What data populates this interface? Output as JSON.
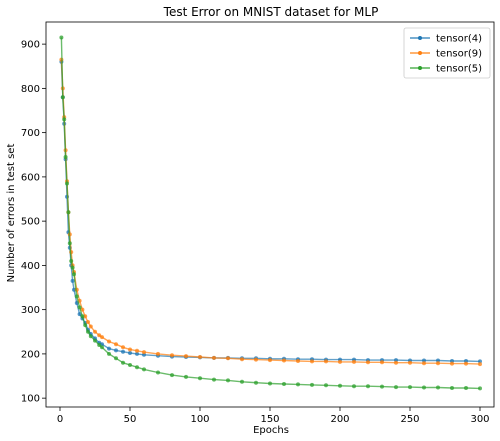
{
  "chart_data": {
    "type": "line",
    "title": "Test Error on MNIST dataset for MLP",
    "xlabel": "Epochs",
    "ylabel": "Number of errors in test set",
    "xlim": [
      -10,
      310
    ],
    "ylim": [
      80,
      950
    ],
    "xticks": [
      0,
      50,
      100,
      150,
      200,
      250,
      300
    ],
    "yticks": [
      100,
      200,
      300,
      400,
      500,
      600,
      700,
      800,
      900
    ],
    "grid": false,
    "legend_position": "top-right",
    "series": [
      {
        "name": "tensor(4)",
        "color": "#1f77b4",
        "x": [
          1,
          2,
          3,
          4,
          5,
          6,
          7,
          8,
          9,
          10,
          12,
          14,
          16,
          18,
          20,
          22,
          25,
          28,
          30,
          35,
          40,
          45,
          50,
          55,
          60,
          70,
          80,
          90,
          100,
          110,
          120,
          130,
          140,
          150,
          160,
          170,
          180,
          190,
          200,
          210,
          220,
          230,
          240,
          250,
          260,
          270,
          280,
          290,
          300
        ],
        "y": [
          860,
          780,
          720,
          640,
          555,
          475,
          440,
          400,
          365,
          345,
          315,
          290,
          280,
          270,
          255,
          245,
          235,
          225,
          222,
          212,
          208,
          205,
          202,
          200,
          198,
          196,
          194,
          193,
          192,
          191,
          191,
          190,
          190,
          189,
          189,
          188,
          188,
          187,
          187,
          187,
          186,
          186,
          186,
          185,
          185,
          185,
          184,
          184,
          183
        ]
      },
      {
        "name": "tensor(9)",
        "color": "#ff7f0e",
        "x": [
          1,
          2,
          3,
          4,
          5,
          6,
          7,
          8,
          9,
          10,
          12,
          14,
          16,
          18,
          20,
          22,
          25,
          28,
          30,
          35,
          40,
          45,
          50,
          55,
          60,
          70,
          80,
          90,
          100,
          110,
          120,
          130,
          140,
          150,
          160,
          170,
          180,
          190,
          200,
          210,
          220,
          230,
          240,
          250,
          260,
          270,
          280,
          290,
          300
        ],
        "y": [
          865,
          800,
          735,
          660,
          590,
          520,
          470,
          430,
          400,
          385,
          345,
          320,
          300,
          285,
          272,
          262,
          250,
          242,
          238,
          228,
          222,
          215,
          210,
          207,
          204,
          200,
          197,
          195,
          193,
          191,
          190,
          188,
          187,
          186,
          185,
          184,
          183,
          183,
          182,
          182,
          181,
          181,
          180,
          180,
          179,
          179,
          178,
          178,
          177
        ]
      },
      {
        "name": "tensor(5)",
        "color": "#2ca02c",
        "x": [
          1,
          2,
          3,
          4,
          5,
          6,
          7,
          8,
          9,
          10,
          12,
          14,
          16,
          18,
          20,
          22,
          25,
          28,
          30,
          35,
          40,
          45,
          50,
          55,
          60,
          70,
          80,
          90,
          100,
          110,
          120,
          130,
          140,
          150,
          160,
          170,
          180,
          190,
          200,
          210,
          220,
          230,
          240,
          250,
          260,
          270,
          280,
          290,
          300
        ],
        "y": [
          915,
          780,
          730,
          645,
          585,
          520,
          450,
          410,
          395,
          380,
          330,
          305,
          285,
          265,
          250,
          240,
          230,
          220,
          215,
          200,
          190,
          180,
          175,
          170,
          165,
          158,
          152,
          148,
          145,
          142,
          140,
          137,
          135,
          133,
          132,
          131,
          130,
          129,
          128,
          127,
          127,
          126,
          125,
          125,
          124,
          124,
          123,
          123,
          122
        ]
      }
    ]
  }
}
